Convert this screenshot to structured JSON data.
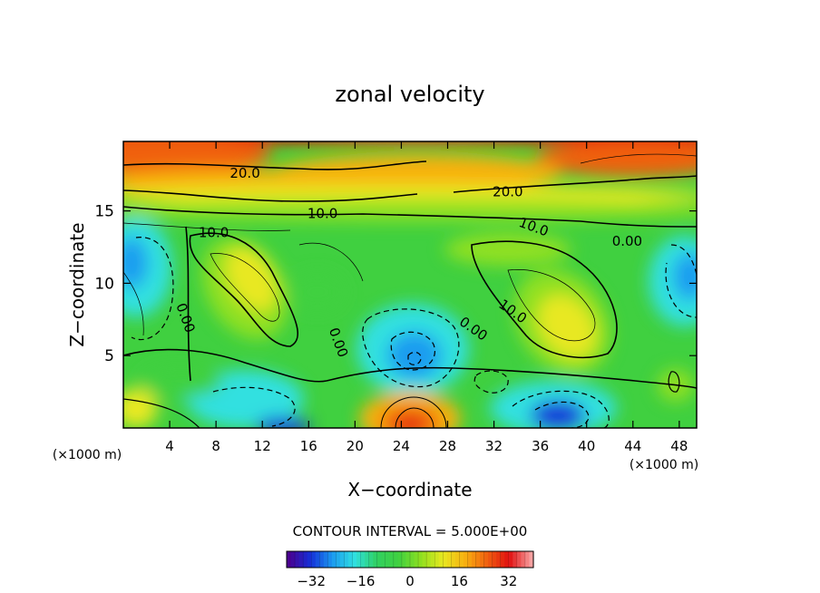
{
  "chart_data": {
    "type": "heatmap",
    "title": "zonal velocity",
    "xlabel": "X−coordinate",
    "ylabel": "Z−coordinate",
    "x_unit_left": "(×1000 m)",
    "x_unit_right": "(×1000 m)",
    "xlim": [
      0,
      49.5
    ],
    "ylim": [
      0,
      19.8
    ],
    "x_ticks": [
      4,
      8,
      12,
      16,
      20,
      24,
      28,
      32,
      36,
      40,
      44,
      48
    ],
    "y_ticks": [
      5,
      10,
      15
    ],
    "contour_interval_text": "CONTOUR INTERVAL = 5.000E+00",
    "contour_labels": [
      {
        "text": "20.0",
        "x": 10.5,
        "y": 17.3
      },
      {
        "text": "20.0",
        "x": 33.2,
        "y": 16.0
      },
      {
        "text": "10.0",
        "x": 17.2,
        "y": 14.5
      },
      {
        "text": "10.0",
        "x": 35.3,
        "y": 13.6
      },
      {
        "text": "10.0",
        "x": 7.8,
        "y": 13.2
      },
      {
        "text": "0.00",
        "x": 43.5,
        "y": 12.6
      },
      {
        "text": "0.00",
        "x": 5.0,
        "y": 7.5
      },
      {
        "text": "0.00",
        "x": 18.2,
        "y": 5.8
      },
      {
        "text": "0.00",
        "x": 30.0,
        "y": 6.6
      },
      {
        "text": "10.0",
        "x": 33.4,
        "y": 7.8
      }
    ],
    "colorbar": {
      "min": -40,
      "max": 40,
      "ticks": [
        -32,
        -16,
        0,
        16,
        32
      ]
    }
  },
  "colors": {
    "scale": [
      "#4a0090",
      "#1530d8",
      "#1c9cf0",
      "#30e0e0",
      "#30d060",
      "#40d040",
      "#90e020",
      "#e8e820",
      "#f8b010",
      "#f06010",
      "#e01010"
    ]
  }
}
